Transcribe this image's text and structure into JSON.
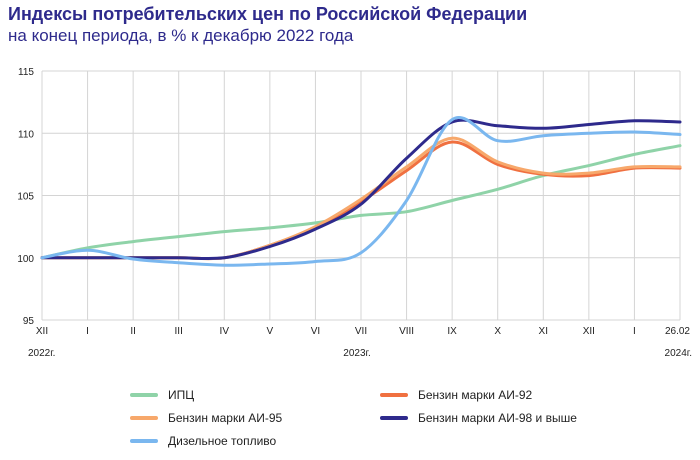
{
  "header": {
    "title": "Индексы потребительских цен по Российской Федерации",
    "subtitle": "на конец периода, в % к декабрю 2022 года"
  },
  "chart_data": {
    "type": "line",
    "title": "Индексы потребительских цен по Российской Федерации",
    "subtitle": "на конец периода, в % к декабрю 2022 года",
    "xlabel": "",
    "ylabel": "",
    "x": [
      "XII",
      "I",
      "II",
      "III",
      "IV",
      "V",
      "VI",
      "VII",
      "VIII",
      "IX",
      "X",
      "XI",
      "XII",
      "I",
      "26.02"
    ],
    "x_year_labels": {
      "start": "2022г.",
      "middle": "2023г.",
      "end": "2024г."
    },
    "ylim": [
      95,
      115
    ],
    "yticks": [
      95,
      100,
      105,
      110,
      115
    ],
    "grid": true,
    "legend_position": "bottom",
    "series": [
      {
        "name": "ИПЦ",
        "color": "#8fd3a8",
        "values": [
          100.0,
          100.8,
          101.3,
          101.7,
          102.1,
          102.4,
          102.8,
          103.4,
          103.7,
          104.6,
          105.5,
          106.6,
          107.4,
          108.3,
          109.0
        ]
      },
      {
        "name": "Бензин марки АИ-92",
        "color": "#f07040",
        "values": [
          100.0,
          100.0,
          100.0,
          100.0,
          100.0,
          101.0,
          102.4,
          104.5,
          107.0,
          109.3,
          107.5,
          106.7,
          106.6,
          107.2,
          107.2
        ]
      },
      {
        "name": "Бензин марки АИ-95",
        "color": "#f7a86b",
        "values": [
          100.0,
          100.0,
          100.0,
          100.0,
          100.0,
          101.0,
          102.5,
          104.7,
          107.3,
          109.6,
          107.7,
          106.8,
          106.8,
          107.3,
          107.3
        ]
      },
      {
        "name": "Бензин марки АИ-98 и выше",
        "color": "#2e2a8c",
        "values": [
          100.0,
          100.0,
          100.0,
          100.0,
          100.0,
          100.9,
          102.3,
          104.3,
          108.0,
          110.9,
          110.6,
          110.4,
          110.7,
          111.0,
          110.9
        ]
      },
      {
        "name": "Дизельное топливо",
        "color": "#7ab7ef",
        "values": [
          100.0,
          100.6,
          99.9,
          99.6,
          99.4,
          99.5,
          99.7,
          100.4,
          104.6,
          111.1,
          109.4,
          109.8,
          110.0,
          110.1,
          109.9
        ]
      }
    ]
  },
  "legend": {
    "items": [
      {
        "label": "ИПЦ",
        "color": "#8fd3a8"
      },
      {
        "label": "Бензин марки АИ-92",
        "color": "#f07040"
      },
      {
        "label": "Бензин марки АИ-95",
        "color": "#f7a86b"
      },
      {
        "label": "Бензин марки АИ-98  и  выше",
        "color": "#2e2a8c"
      },
      {
        "label": "Дизельное топливо",
        "color": "#7ab7ef"
      }
    ]
  }
}
